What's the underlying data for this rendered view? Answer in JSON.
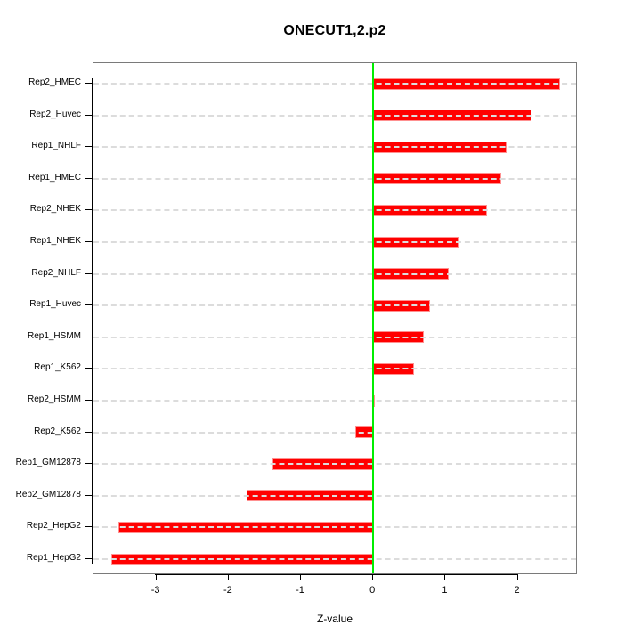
{
  "title": "ONECUT1,2.p2",
  "chart_data": {
    "type": "bar",
    "orientation": "horizontal",
    "title": "ONECUT1,2.p2",
    "xlabel": "Z-value",
    "ylabel": "",
    "categories": [
      "Rep2_HMEC",
      "Rep2_Huvec",
      "Rep1_NHLF",
      "Rep1_HMEC",
      "Rep2_NHEK",
      "Rep1_NHEK",
      "Rep2_NHLF",
      "Rep1_Huvec",
      "Rep1_HSMM",
      "Rep1_K562",
      "Rep2_HSMM",
      "Rep2_K562",
      "Rep1_GM12878",
      "Rep2_GM12878",
      "Rep2_HepG2",
      "Rep1_HepG2"
    ],
    "values": [
      2.58,
      2.19,
      1.84,
      1.77,
      1.57,
      1.19,
      1.04,
      0.79,
      0.7,
      0.57,
      0.02,
      -0.25,
      -1.4,
      -1.75,
      -3.53,
      -3.62
    ],
    "x_ticks": [
      -3,
      -2,
      -1,
      0,
      1,
      2
    ],
    "xlim": [
      -3.87,
      2.83
    ],
    "grid": "dashed horizontal line per category",
    "legend": "none",
    "colors": {
      "bar_fill": "#ff0000",
      "bar_border": "#ff9090",
      "zero_line": "#00ee00",
      "gridline": "#dcdcdc",
      "frame": "#7a7a7a",
      "text": "#000000"
    }
  }
}
